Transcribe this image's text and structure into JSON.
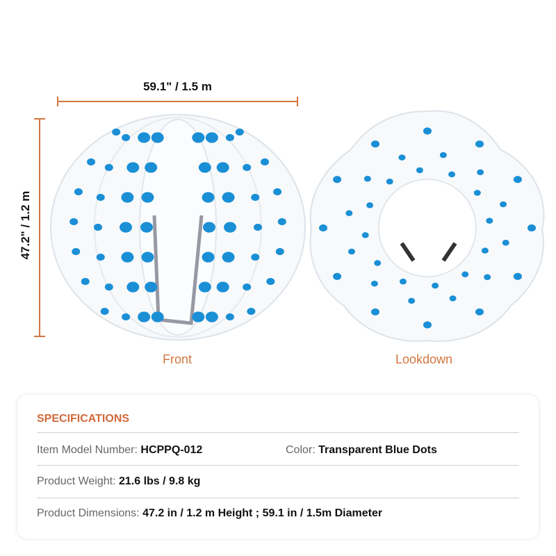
{
  "dimensions": {
    "width_label": "59.1\" / 1.5 m",
    "height_label": "47.2\" / 1.2 m",
    "line_color": "#d2763f"
  },
  "views": [
    {
      "caption": "Front"
    },
    {
      "caption": "Lookdown"
    }
  ],
  "specifications": {
    "heading": "SPECIFICATIONS",
    "accent_color": "#d2683a",
    "rows": [
      {
        "label": "Item Model Number:",
        "value": "HCPPQ-012"
      },
      {
        "label": "Color:",
        "value": "Transparent Blue Dots"
      },
      {
        "label": "Product Weight:",
        "value": "21.6 lbs / 9.8 kg"
      },
      {
        "label": "Product Dimensions:",
        "value": "47.2 in / 1.2 m Height ; 59.1 in / 1.5m Diameter"
      }
    ]
  },
  "dot_color": "#1a8fd6"
}
